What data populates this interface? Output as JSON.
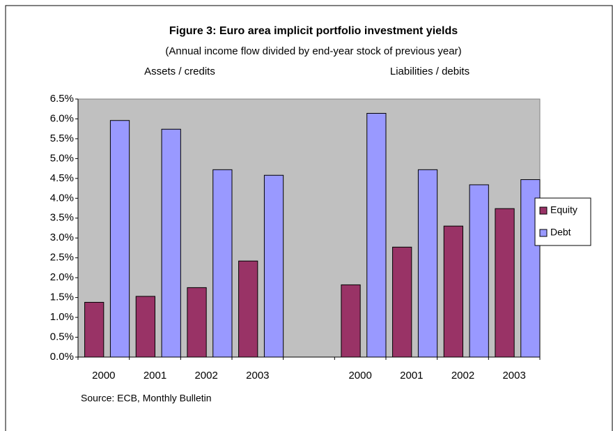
{
  "chart_data": {
    "type": "bar",
    "title": "Figure 3: Euro area implicit portfolio investment yields",
    "subtitle": "(Annual income flow divided by end-year stock of previous year)",
    "group_labels": [
      "Assets / credits",
      "Liabilities / debits"
    ],
    "source": "Source: ECB, Monthly Bulletin",
    "categories": [
      "2000",
      "2001",
      "2002",
      "2003",
      null,
      "2000",
      "2001",
      "2002",
      "2003"
    ],
    "series": [
      {
        "name": "Equity",
        "color": "#993366",
        "values": [
          1.38,
          1.53,
          1.75,
          2.42,
          null,
          1.82,
          2.77,
          3.3,
          3.74
        ]
      },
      {
        "name": "Debt",
        "color": "#9999ff",
        "values": [
          5.96,
          5.74,
          4.72,
          4.58,
          null,
          6.14,
          4.72,
          4.34,
          4.47
        ]
      }
    ],
    "ylim": [
      0,
      6.5
    ],
    "yticks": [
      {
        "value": 0,
        "label": "0.0%"
      },
      {
        "value": 0.5,
        "label": "0.5%"
      },
      {
        "value": 1,
        "label": "1.0%"
      },
      {
        "value": 1.5,
        "label": "1.5%"
      },
      {
        "value": 2,
        "label": "2.0%"
      },
      {
        "value": 2.5,
        "label": "2.5%"
      },
      {
        "value": 3,
        "label": "3.0%"
      },
      {
        "value": 3.5,
        "label": "3.5%"
      },
      {
        "value": 4,
        "label": "4.0%"
      },
      {
        "value": 4.5,
        "label": "4.5%"
      },
      {
        "value": 5,
        "label": "5.0%"
      },
      {
        "value": 5.5,
        "label": "5.5%"
      },
      {
        "value": 6,
        "label": "6.0%"
      },
      {
        "value": 6.5,
        "label": "6.5%"
      }
    ],
    "legend": "right"
  }
}
